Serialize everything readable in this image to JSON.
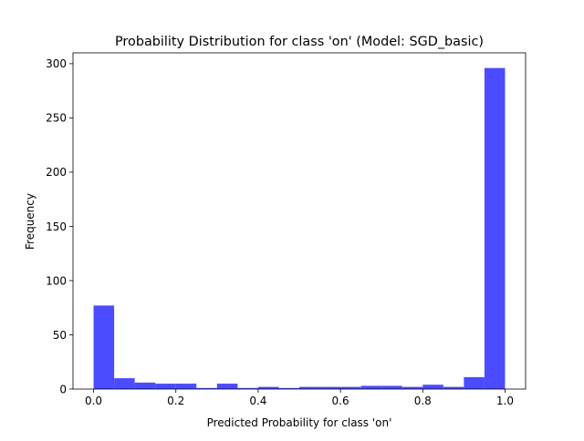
{
  "chart_data": {
    "type": "bar",
    "subtype": "histogram",
    "title": "Probability Distribution for class 'on' (Model: SGD_basic)",
    "xlabel": "Predicted Probability for class 'on'",
    "ylabel": "Frequency",
    "xlim": [
      -0.05,
      1.05
    ],
    "ylim": [
      0,
      310
    ],
    "xticks": [
      0.0,
      0.2,
      0.4,
      0.6,
      0.8,
      1.0
    ],
    "xtick_labels": [
      "0.0",
      "0.2",
      "0.4",
      "0.6",
      "0.8",
      "1.0"
    ],
    "yticks": [
      0,
      50,
      100,
      150,
      200,
      250,
      300
    ],
    "ytick_labels": [
      "0",
      "50",
      "100",
      "150",
      "200",
      "250",
      "300"
    ],
    "grid": false,
    "bar_color": "#4b4bff",
    "bin_edges": [
      0.0,
      0.05,
      0.1,
      0.15,
      0.2,
      0.25,
      0.3,
      0.35,
      0.4,
      0.45,
      0.5,
      0.55,
      0.6,
      0.65,
      0.7,
      0.75,
      0.8,
      0.85,
      0.9,
      0.95,
      1.0
    ],
    "counts": [
      77,
      10,
      6,
      5,
      5,
      1,
      5,
      1,
      2,
      1,
      2,
      2,
      2,
      3,
      3,
      2,
      4,
      2,
      11,
      296
    ]
  }
}
